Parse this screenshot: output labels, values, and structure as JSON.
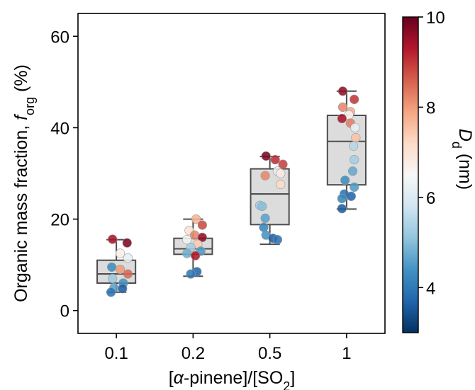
{
  "chart_data": {
    "type": "box",
    "xlabel": "[α-pinene]/[SO2]",
    "xlabel_parts": {
      "prefix": "[",
      "alpha": "α",
      "mid": "-pinene]/[SO",
      "sub": "2",
      "suffix": "]"
    },
    "ylabel": "Organic mass fraction, f_org (%)",
    "ylabel_parts": {
      "main": "Organic mass fraction, ",
      "italic": "f",
      "sub": "org",
      "tail": " (%)"
    },
    "ylim": [
      -5,
      65
    ],
    "yticks": [
      0,
      20,
      40,
      60
    ],
    "categories": [
      "0.1",
      "0.2",
      "0.5",
      "1"
    ],
    "boxes": [
      {
        "category": "0.1",
        "whisker_low": 4.0,
        "q1": 6.0,
        "median": 8.0,
        "q3": 11.0,
        "whisker_high": 15.5
      },
      {
        "category": "0.2",
        "whisker_low": 7.5,
        "q1": 12.3,
        "median": 13.5,
        "q3": 15.8,
        "whisker_high": 20.0
      },
      {
        "category": "0.5",
        "whisker_low": 14.5,
        "q1": 18.8,
        "median": 25.5,
        "q3": 31.0,
        "whisker_high": 33.7
      },
      {
        "category": "1",
        "whisker_low": 22.2,
        "q1": 27.5,
        "median": 37.0,
        "q3": 42.7,
        "whisker_high": 48.0
      }
    ],
    "points": [
      {
        "category": "0.1",
        "jitter": -0.05,
        "y": 15.6,
        "dd": 9.4
      },
      {
        "category": "0.1",
        "jitter": 0.14,
        "y": 14.8,
        "dd": 9.8
      },
      {
        "category": "0.1",
        "jitter": 0.05,
        "y": 12.5,
        "dd": 6.7
      },
      {
        "category": "0.1",
        "jitter": 0.15,
        "y": 11.5,
        "dd": 6.2
      },
      {
        "category": "0.1",
        "jitter": -0.06,
        "y": 9.5,
        "dd": 4.3
      },
      {
        "category": "0.1",
        "jitter": 0.05,
        "y": 9.0,
        "dd": 8.0
      },
      {
        "category": "0.1",
        "jitter": 0.15,
        "y": 8.0,
        "dd": 8.5
      },
      {
        "category": "0.1",
        "jitter": -0.05,
        "y": 7.0,
        "dd": 5.2
      },
      {
        "category": "0.1",
        "jitter": 0.09,
        "y": 6.0,
        "dd": 4.4
      },
      {
        "category": "0.1",
        "jitter": -0.03,
        "y": 5.0,
        "dd": 4.6
      },
      {
        "category": "0.1",
        "jitter": 0.08,
        "y": 4.8,
        "dd": 3.6
      },
      {
        "category": "0.1",
        "jitter": -0.07,
        "y": 4.0,
        "dd": 3.9
      },
      {
        "category": "0.2",
        "jitter": 0.04,
        "y": 20.0,
        "dd": 7.7
      },
      {
        "category": "0.2",
        "jitter": 0.12,
        "y": 18.7,
        "dd": 8.8
      },
      {
        "category": "0.2",
        "jitter": -0.05,
        "y": 17.5,
        "dd": 7.0
      },
      {
        "category": "0.2",
        "jitter": 0.02,
        "y": 16.5,
        "dd": 8.2
      },
      {
        "category": "0.2",
        "jitter": 0.12,
        "y": 16.0,
        "dd": 9.6
      },
      {
        "category": "0.2",
        "jitter": -0.08,
        "y": 15.5,
        "dd": 6.4
      },
      {
        "category": "0.2",
        "jitter": 0.06,
        "y": 14.5,
        "dd": 7.4
      },
      {
        "category": "0.2",
        "jitter": -0.03,
        "y": 13.8,
        "dd": 5.3
      },
      {
        "category": "0.2",
        "jitter": 0.1,
        "y": 13.0,
        "dd": 4.5
      },
      {
        "category": "0.2",
        "jitter": -0.08,
        "y": 12.5,
        "dd": 4.8
      },
      {
        "category": "0.2",
        "jitter": 0.03,
        "y": 12.0,
        "dd": 9.3
      },
      {
        "category": "0.2",
        "jitter": 0.05,
        "y": 8.5,
        "dd": 3.7
      },
      {
        "category": "0.2",
        "jitter": -0.03,
        "y": 8.0,
        "dd": 4.0
      },
      {
        "category": "0.5",
        "jitter": -0.05,
        "y": 33.8,
        "dd": 9.8
      },
      {
        "category": "0.5",
        "jitter": 0.07,
        "y": 33.0,
        "dd": 9.1
      },
      {
        "category": "0.5",
        "jitter": 0.17,
        "y": 32.0,
        "dd": 8.9
      },
      {
        "category": "0.5",
        "jitter": 0.1,
        "y": 30.5,
        "dd": 6.2
      },
      {
        "category": "0.5",
        "jitter": 0.14,
        "y": 30.0,
        "dd": 6.8
      },
      {
        "category": "0.5",
        "jitter": -0.06,
        "y": 29.5,
        "dd": 8.2
      },
      {
        "category": "0.5",
        "jitter": 0.14,
        "y": 27.6,
        "dd": 7.2
      },
      {
        "category": "0.5",
        "jitter": -0.13,
        "y": 23.0,
        "dd": 5.3
      },
      {
        "category": "0.5",
        "jitter": -0.1,
        "y": 22.8,
        "dd": 5.0
      },
      {
        "category": "0.5",
        "jitter": -0.06,
        "y": 20.2,
        "dd": 4.6
      },
      {
        "category": "0.5",
        "jitter": -0.08,
        "y": 18.2,
        "dd": 4.2
      },
      {
        "category": "0.5",
        "jitter": -0.05,
        "y": 16.5,
        "dd": 4.4
      },
      {
        "category": "0.5",
        "jitter": 0.04,
        "y": 15.8,
        "dd": 3.6
      },
      {
        "category": "0.5",
        "jitter": 0.1,
        "y": 15.5,
        "dd": 3.9
      },
      {
        "category": "1",
        "jitter": -0.05,
        "y": 48.0,
        "dd": 9.6
      },
      {
        "category": "1",
        "jitter": 0.1,
        "y": 46.2,
        "dd": 9.0
      },
      {
        "category": "1",
        "jitter": -0.05,
        "y": 44.5,
        "dd": 8.2
      },
      {
        "category": "1",
        "jitter": 0.05,
        "y": 43.5,
        "dd": 7.8
      },
      {
        "category": "1",
        "jitter": 0.03,
        "y": 42.8,
        "dd": 6.6
      },
      {
        "category": "1",
        "jitter": -0.06,
        "y": 42.0,
        "dd": 9.4
      },
      {
        "category": "1",
        "jitter": 0.05,
        "y": 41.0,
        "dd": 8.3
      },
      {
        "category": "1",
        "jitter": 0.11,
        "y": 40.0,
        "dd": 6.2
      },
      {
        "category": "1",
        "jitter": 0.12,
        "y": 37.8,
        "dd": 7.5
      },
      {
        "category": "1",
        "jitter": 0.09,
        "y": 36.0,
        "dd": 5.5
      },
      {
        "category": "1",
        "jitter": 0.1,
        "y": 33.0,
        "dd": 5.3
      },
      {
        "category": "1",
        "jitter": 0.08,
        "y": 30.5,
        "dd": 4.7
      },
      {
        "category": "1",
        "jitter": -0.02,
        "y": 28.5,
        "dd": 4.3
      },
      {
        "category": "1",
        "jitter": 0.1,
        "y": 27.0,
        "dd": 4.5
      },
      {
        "category": "1",
        "jitter": -0.03,
        "y": 25.5,
        "dd": 3.9
      },
      {
        "category": "1",
        "jitter": 0.06,
        "y": 25.0,
        "dd": 3.7
      },
      {
        "category": "1",
        "jitter": -0.06,
        "y": 24.5,
        "dd": 4.2
      },
      {
        "category": "1",
        "jitter": -0.06,
        "y": 22.3,
        "dd": 3.6
      }
    ],
    "colorbar": {
      "label": "D_d (nm)",
      "label_parts": {
        "main": "D",
        "sub": "d",
        "tail": " (nm)"
      },
      "min": 3,
      "max": 10,
      "ticks": [
        4,
        6,
        8,
        10
      ],
      "colormap": "RdBu_r",
      "stops": [
        "#053061",
        "#2166ac",
        "#4393c3",
        "#92c5de",
        "#d1e5f0",
        "#f7f7f7",
        "#fddbc7",
        "#f4a582",
        "#d6604d",
        "#b2182b",
        "#67001f"
      ]
    },
    "colors": {
      "box_fill": "#dcdcdc",
      "box_edge": "#4d4d4d",
      "axis": "#000000",
      "point_edge": "#999999"
    },
    "grid": false,
    "legend": "none"
  }
}
